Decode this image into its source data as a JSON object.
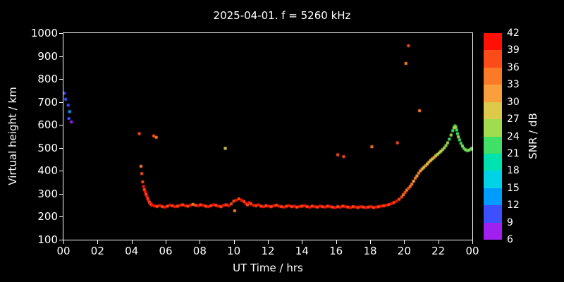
{
  "chart_data": {
    "type": "scatter",
    "title": "2025-04-01. f = 5260 kHz",
    "xlabel": "UT Time / hrs",
    "ylabel": "Virtual height / km",
    "xlim": [
      0,
      24
    ],
    "ylim": [
      100,
      1000
    ],
    "grid": false,
    "background": "#000000",
    "axis_color": "#ffffff",
    "x_ticks": {
      "values": [
        0,
        2,
        4,
        6,
        8,
        10,
        12,
        14,
        16,
        18,
        20,
        22,
        24
      ],
      "labels": [
        "00",
        "02",
        "04",
        "06",
        "08",
        "10",
        "12",
        "14",
        "16",
        "18",
        "20",
        "22",
        "00"
      ]
    },
    "y_ticks": {
      "values": [
        100,
        200,
        300,
        400,
        500,
        600,
        700,
        800,
        900,
        1000
      ],
      "labels": [
        "100",
        "200",
        "300",
        "400",
        "500",
        "600",
        "700",
        "800",
        "900",
        "1000"
      ]
    },
    "colorbar": {
      "label": "SNR / dB",
      "range": [
        6,
        42
      ],
      "ticks": [
        42,
        39,
        36,
        33,
        30,
        27,
        24,
        21,
        18,
        15,
        12,
        9,
        6
      ],
      "band_colors_low_to_high": [
        "#a020f0",
        "#3c50ff",
        "#009dff",
        "#00d2e8",
        "#00e2b0",
        "#3fe065",
        "#9fdc4e",
        "#ddc94a",
        "#f9a03c",
        "#fb7a28",
        "#fb4b19",
        "#ff1005"
      ]
    },
    "points_format": [
      "ut_hours",
      "virtual_height_km",
      "snr_db"
    ],
    "points": [
      [
        0.05,
        738,
        11
      ],
      [
        0.13,
        712,
        11
      ],
      [
        0.28,
        686,
        11
      ],
      [
        0.36,
        658,
        14
      ],
      [
        0.32,
        628,
        11
      ],
      [
        0.47,
        613,
        8
      ],
      [
        4.45,
        562,
        38
      ],
      [
        4.55,
        420,
        35
      ],
      [
        4.6,
        388,
        38
      ],
      [
        4.65,
        352,
        38
      ],
      [
        4.7,
        332,
        41
      ],
      [
        4.75,
        318,
        38
      ],
      [
        4.8,
        308,
        41
      ],
      [
        4.85,
        297,
        38
      ],
      [
        4.9,
        288,
        41
      ],
      [
        4.95,
        278,
        38
      ],
      [
        5.0,
        270,
        41
      ],
      [
        5.05,
        263,
        38
      ],
      [
        5.1,
        257,
        41
      ],
      [
        5.15,
        253,
        38
      ],
      [
        5.2,
        250,
        41
      ],
      [
        5.3,
        552,
        38
      ],
      [
        5.45,
        546,
        35
      ],
      [
        5.35,
        247,
        41
      ],
      [
        5.5,
        245,
        38
      ],
      [
        5.65,
        249,
        41
      ],
      [
        5.8,
        244,
        38
      ],
      [
        5.95,
        242,
        41
      ],
      [
        6.1,
        246,
        38
      ],
      [
        6.25,
        250,
        41
      ],
      [
        6.4,
        248,
        38
      ],
      [
        6.55,
        244,
        41
      ],
      [
        6.7,
        246,
        38
      ],
      [
        6.85,
        250,
        41
      ],
      [
        7.0,
        252,
        38
      ],
      [
        7.15,
        248,
        41
      ],
      [
        7.3,
        246,
        38
      ],
      [
        7.45,
        250,
        41
      ],
      [
        7.6,
        254,
        35
      ],
      [
        7.75,
        250,
        38
      ],
      [
        7.9,
        248,
        41
      ],
      [
        8.05,
        252,
        38
      ],
      [
        8.2,
        250,
        41
      ],
      [
        8.35,
        246,
        38
      ],
      [
        8.5,
        244,
        41
      ],
      [
        8.65,
        248,
        38
      ],
      [
        8.8,
        252,
        41
      ],
      [
        8.95,
        250,
        38
      ],
      [
        9.1,
        246,
        41
      ],
      [
        9.25,
        244,
        38
      ],
      [
        9.4,
        250,
        41
      ],
      [
        9.5,
        498,
        28
      ],
      [
        9.55,
        252,
        38
      ],
      [
        9.7,
        248,
        41
      ],
      [
        9.85,
        256,
        38
      ],
      [
        10.0,
        268,
        38
      ],
      [
        10.05,
        226,
        35
      ],
      [
        10.15,
        272,
        41
      ],
      [
        10.3,
        278,
        38
      ],
      [
        10.45,
        272,
        41
      ],
      [
        10.6,
        266,
        38
      ],
      [
        10.7,
        258,
        41
      ],
      [
        10.8,
        252,
        38
      ],
      [
        10.9,
        262,
        41
      ],
      [
        11.0,
        256,
        38
      ],
      [
        11.15,
        250,
        41
      ],
      [
        11.3,
        248,
        38
      ],
      [
        11.45,
        252,
        41
      ],
      [
        11.6,
        246,
        38
      ],
      [
        11.75,
        244,
        41
      ],
      [
        11.9,
        248,
        38
      ],
      [
        12.05,
        246,
        41
      ],
      [
        12.2,
        244,
        38
      ],
      [
        12.35,
        248,
        41
      ],
      [
        12.5,
        250,
        38
      ],
      [
        12.65,
        246,
        41
      ],
      [
        12.8,
        244,
        38
      ],
      [
        12.95,
        242,
        41
      ],
      [
        13.1,
        246,
        38
      ],
      [
        13.25,
        248,
        41
      ],
      [
        13.4,
        244,
        38
      ],
      [
        13.55,
        246,
        41
      ],
      [
        13.7,
        242,
        38
      ],
      [
        13.85,
        244,
        41
      ],
      [
        14.0,
        246,
        38
      ],
      [
        14.15,
        248,
        41
      ],
      [
        14.3,
        244,
        38
      ],
      [
        14.45,
        242,
        41
      ],
      [
        14.6,
        246,
        38
      ],
      [
        14.75,
        244,
        41
      ],
      [
        14.9,
        242,
        38
      ],
      [
        15.05,
        246,
        41
      ],
      [
        15.2,
        244,
        38
      ],
      [
        15.35,
        242,
        41
      ],
      [
        15.5,
        246,
        38
      ],
      [
        15.65,
        244,
        41
      ],
      [
        15.8,
        242,
        38
      ],
      [
        15.95,
        240,
        41
      ],
      [
        16.1,
        244,
        38
      ],
      [
        16.25,
        242,
        41
      ],
      [
        16.4,
        246,
        38
      ],
      [
        16.55,
        244,
        41
      ],
      [
        16.7,
        242,
        38
      ],
      [
        16.85,
        240,
        41
      ],
      [
        17.0,
        244,
        38
      ],
      [
        17.15,
        242,
        41
      ],
      [
        17.3,
        240,
        38
      ],
      [
        17.45,
        244,
        41
      ],
      [
        17.6,
        242,
        38
      ],
      [
        17.75,
        240,
        41
      ],
      [
        17.9,
        242,
        38
      ],
      [
        18.05,
        244,
        41
      ],
      [
        18.2,
        240,
        38
      ],
      [
        18.35,
        242,
        41
      ],
      [
        16.1,
        470,
        38
      ],
      [
        16.45,
        462,
        38
      ],
      [
        18.1,
        505,
        35
      ],
      [
        19.6,
        522,
        38
      ],
      [
        18.5,
        244,
        38
      ],
      [
        18.65,
        246,
        41
      ],
      [
        18.8,
        248,
        38
      ],
      [
        18.95,
        250,
        41
      ],
      [
        19.1,
        253,
        38
      ],
      [
        19.25,
        257,
        41
      ],
      [
        19.4,
        262,
        38
      ],
      [
        19.55,
        268,
        41
      ],
      [
        19.7,
        276,
        38
      ],
      [
        19.85,
        286,
        38
      ],
      [
        19.95,
        296,
        35
      ],
      [
        20.05,
        306,
        38
      ],
      [
        20.15,
        316,
        35
      ],
      [
        20.25,
        324,
        38
      ],
      [
        20.35,
        332,
        35
      ],
      [
        20.1,
        868,
        35
      ],
      [
        20.25,
        945,
        38
      ],
      [
        20.9,
        662,
        35
      ],
      [
        20.45,
        342,
        35
      ],
      [
        20.55,
        355,
        32
      ],
      [
        20.65,
        368,
        35
      ],
      [
        20.75,
        378,
        32
      ],
      [
        20.85,
        390,
        35
      ],
      [
        20.95,
        400,
        32
      ],
      [
        21.05,
        408,
        32
      ],
      [
        21.15,
        415,
        29
      ],
      [
        21.25,
        422,
        32
      ],
      [
        21.35,
        430,
        29
      ],
      [
        21.45,
        438,
        32
      ],
      [
        21.55,
        445,
        29
      ],
      [
        21.65,
        452,
        29
      ],
      [
        21.75,
        458,
        32
      ],
      [
        21.85,
        465,
        29
      ],
      [
        21.95,
        472,
        29
      ],
      [
        22.05,
        478,
        26
      ],
      [
        22.15,
        485,
        29
      ],
      [
        22.25,
        492,
        26
      ],
      [
        22.35,
        500,
        26
      ],
      [
        22.45,
        510,
        26
      ],
      [
        22.55,
        522,
        26
      ],
      [
        22.65,
        538,
        23
      ],
      [
        22.75,
        556,
        26
      ],
      [
        22.85,
        575,
        23
      ],
      [
        22.92,
        588,
        26
      ],
      [
        22.98,
        596,
        23
      ],
      [
        23.03,
        590,
        26
      ],
      [
        23.08,
        578,
        23
      ],
      [
        23.13,
        562,
        23
      ],
      [
        23.18,
        548,
        26
      ],
      [
        23.25,
        535,
        23
      ],
      [
        23.33,
        520,
        23
      ],
      [
        23.42,
        508,
        26
      ],
      [
        23.5,
        498,
        23
      ],
      [
        23.6,
        492,
        26
      ],
      [
        23.7,
        488,
        23
      ],
      [
        23.8,
        490,
        26
      ],
      [
        23.9,
        494,
        23
      ],
      [
        23.97,
        498,
        26
      ]
    ]
  }
}
